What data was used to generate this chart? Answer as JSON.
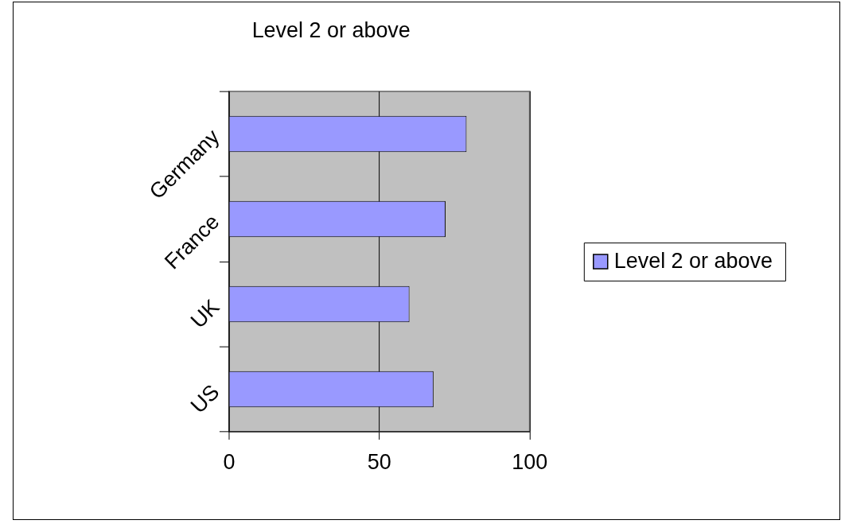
{
  "chart_data": {
    "type": "bar",
    "orientation": "horizontal",
    "title": "Level 2 or above",
    "categories": [
      "Germany",
      "France",
      "UK",
      "US"
    ],
    "series": [
      {
        "name": "Level 2 or above",
        "color": "#9999ff",
        "values": [
          79,
          72,
          60,
          68
        ]
      }
    ],
    "xlim": [
      0,
      100
    ],
    "xticks": [
      0,
      50,
      100
    ],
    "grid": "x",
    "legend": "right"
  }
}
